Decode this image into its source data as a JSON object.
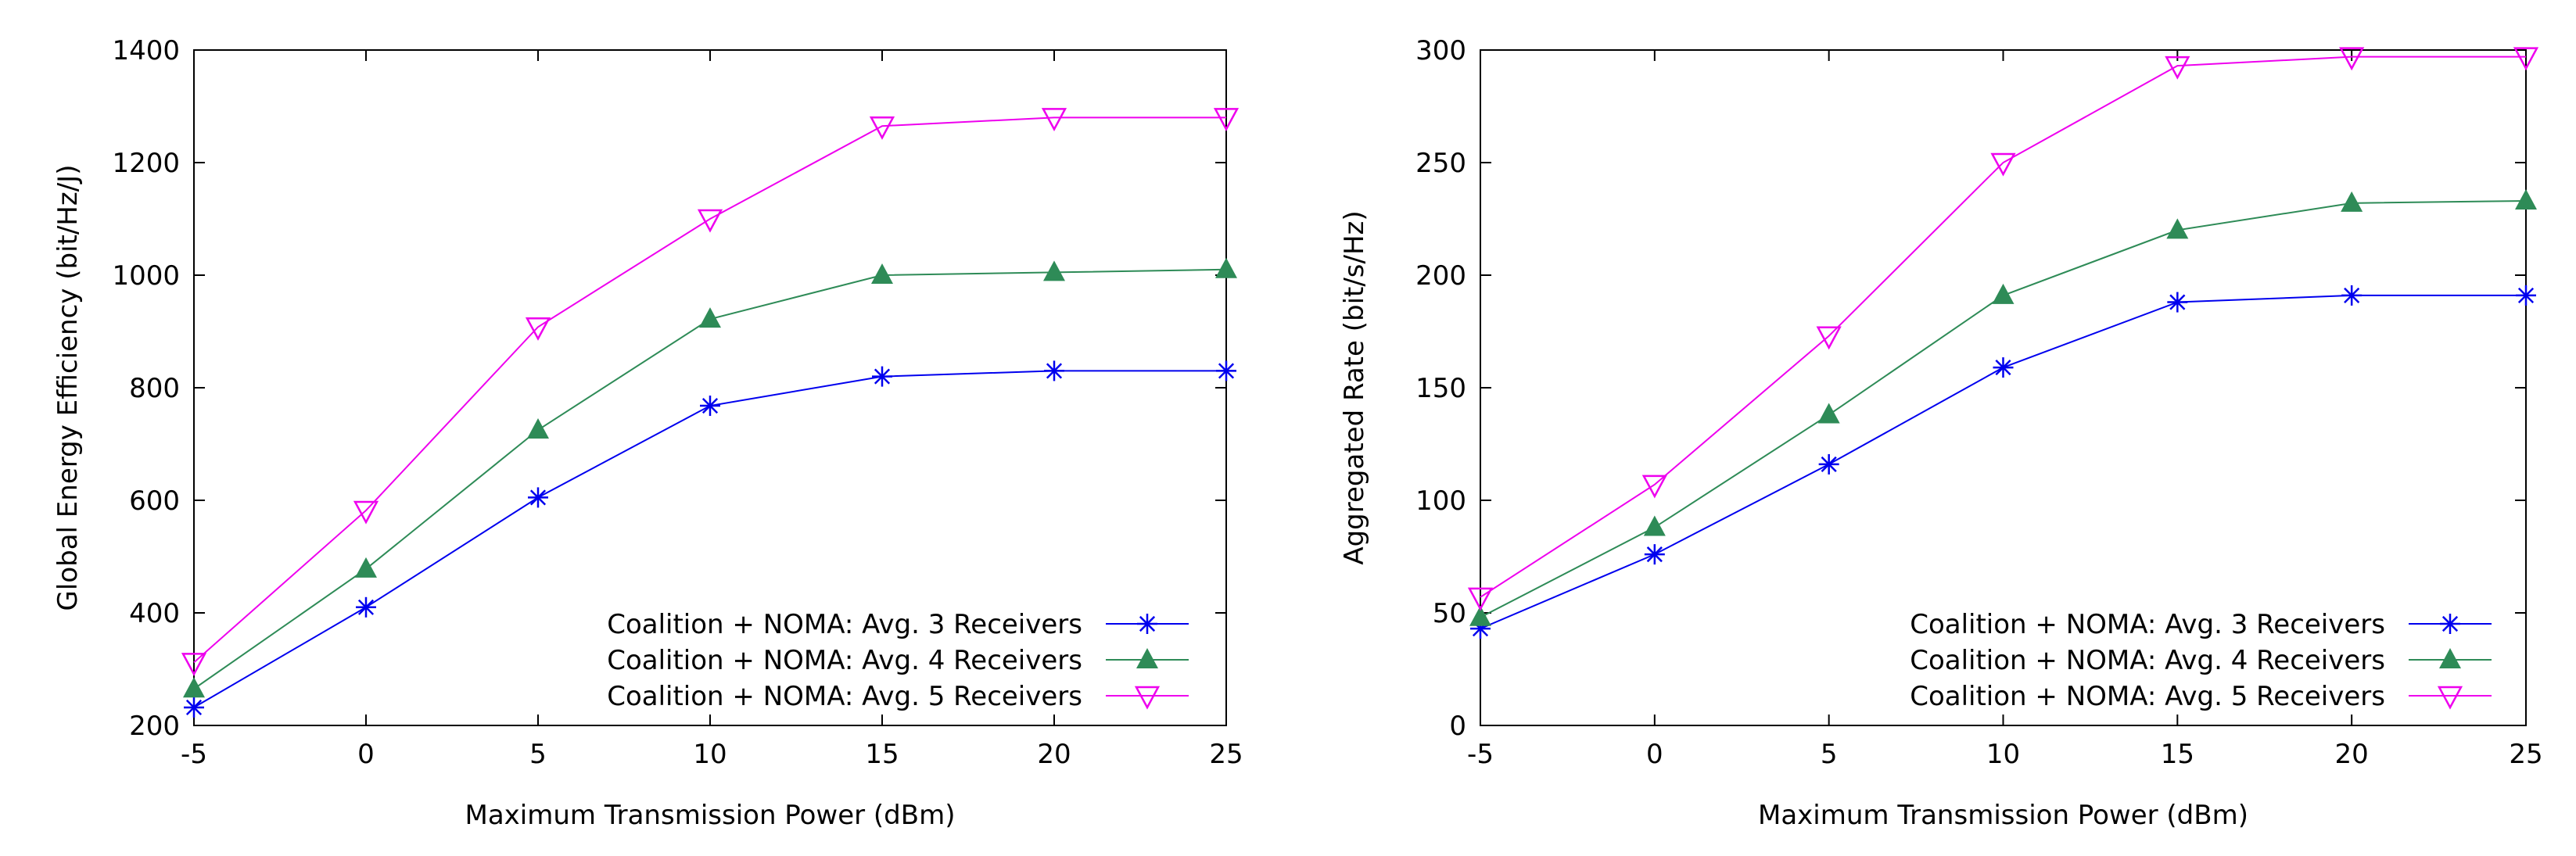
{
  "colors": {
    "series3": "#0000ee",
    "series4": "#2e8b57",
    "series5": "#ee00ee"
  },
  "chart_data": [
    {
      "type": "line",
      "title": "",
      "xlabel": "Maximum Transmission Power (dBm)",
      "ylabel": "Global Energy Efficiency (bit/Hz/J)",
      "x": [
        -5,
        0,
        5,
        10,
        15,
        20,
        25
      ],
      "xlim": [
        -5,
        25
      ],
      "ylim": [
        200,
        1400
      ],
      "xticks": [
        "-5",
        "0",
        "5",
        "10",
        "15",
        "20",
        "25"
      ],
      "yticks": [
        "200",
        "400",
        "600",
        "800",
        "1000",
        "1200",
        "1400"
      ],
      "legend_position": "bottom-right",
      "series": [
        {
          "name": "Coalition + NOMA: Avg. 3 Receivers",
          "marker": "asterisk",
          "color": "#0000ee",
          "values": [
            232,
            410,
            605,
            768,
            820,
            830,
            830
          ]
        },
        {
          "name": "Coalition + NOMA: Avg. 4 Receivers",
          "marker": "triangle-up",
          "color": "#2e8b57",
          "values": [
            265,
            478,
            725,
            922,
            1000,
            1005,
            1010
          ]
        },
        {
          "name": "Coalition + NOMA: Avg. 5 Receivers",
          "marker": "triangle-down",
          "color": "#ee00ee",
          "values": [
            312,
            582,
            908,
            1100,
            1265,
            1280,
            1280
          ]
        }
      ]
    },
    {
      "type": "line",
      "title": "",
      "xlabel": "Maximum Transmission Power (dBm)",
      "ylabel": "Aggregated Rate (bit/s/Hz)",
      "x": [
        -5,
        0,
        5,
        10,
        15,
        20,
        25
      ],
      "xlim": [
        -5,
        25
      ],
      "ylim": [
        0,
        300
      ],
      "xticks": [
        "-5",
        "0",
        "5",
        "10",
        "15",
        "20",
        "25"
      ],
      "yticks": [
        "0",
        "50",
        "100",
        "150",
        "200",
        "250",
        "300"
      ],
      "legend_position": "bottom-right",
      "series": [
        {
          "name": "Coalition + NOMA: Avg. 3 Receivers",
          "marker": "asterisk",
          "color": "#0000ee",
          "values": [
            43,
            76,
            116,
            159,
            188,
            191,
            191
          ]
        },
        {
          "name": "Coalition + NOMA: Avg. 4 Receivers",
          "marker": "triangle-up",
          "color": "#2e8b57",
          "values": [
            48,
            88,
            138,
            191,
            220,
            232,
            233
          ]
        },
        {
          "name": "Coalition + NOMA: Avg. 5 Receivers",
          "marker": "triangle-down",
          "color": "#ee00ee",
          "values": [
            57,
            107,
            173,
            250,
            293,
            297,
            297
          ]
        }
      ]
    }
  ]
}
